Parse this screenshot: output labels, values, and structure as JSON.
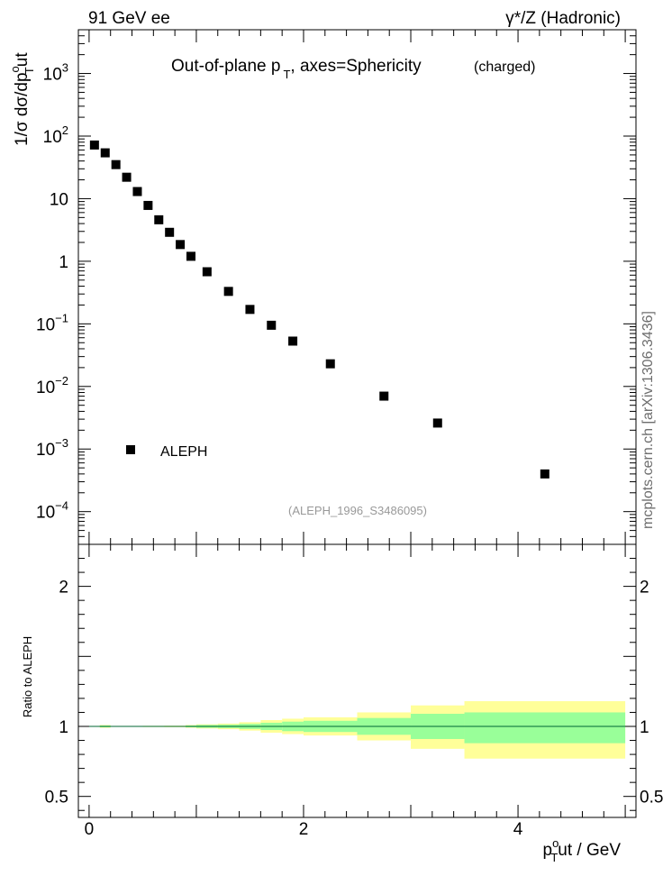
{
  "header": {
    "left": "91 GeV ee",
    "right": "γ*/Z (Hadronic)"
  },
  "side_label": "mcplots.cern.ch [arXiv:1306.3436]",
  "chart_data": [
    {
      "type": "scatter",
      "title": "Out-of-plane p",
      "title_sub": "T",
      "title_rest": ", axes=Sphericity",
      "title_note": "(charged)",
      "ylabel_prefix": "1/σ dσ/dp",
      "ylabel_sup": "o",
      "ylabel_sub": "T",
      "ylabel_suffix": "ut",
      "yscale": "log",
      "ylim": [
        3e-05,
        5000
      ],
      "xlim": [
        -0.1,
        5.1
      ],
      "yticks": [
        {
          "v": 0.0001,
          "base": "10",
          "exp": "−4"
        },
        {
          "v": 0.001,
          "base": "10",
          "exp": "−3"
        },
        {
          "v": 0.01,
          "base": "10",
          "exp": "−2"
        },
        {
          "v": 0.1,
          "base": "10",
          "exp": "−1"
        },
        {
          "v": 1,
          "base": "1",
          "exp": ""
        },
        {
          "v": 10,
          "base": "10",
          "exp": ""
        },
        {
          "v": 100,
          "base": "10",
          "exp": "2"
        },
        {
          "v": 1000,
          "base": "10",
          "exp": "3"
        }
      ],
      "legend": [
        {
          "name": "ALEPH",
          "marker": "square",
          "color": "#000000"
        }
      ],
      "legend_position": "lower-left",
      "annotation": "(ALEPH_1996_S3486095)",
      "series": [
        {
          "name": "ALEPH",
          "x": [
            0.05,
            0.15,
            0.25,
            0.35,
            0.45,
            0.55,
            0.65,
            0.75,
            0.85,
            0.95,
            1.1,
            1.3,
            1.5,
            1.7,
            1.9,
            2.25,
            2.75,
            3.25,
            4.25
          ],
          "y": [
            72,
            54,
            35,
            22,
            13,
            7.8,
            4.6,
            2.9,
            1.85,
            1.2,
            0.68,
            0.33,
            0.17,
            0.095,
            0.053,
            0.023,
            0.007,
            0.0026,
            0.0004
          ]
        }
      ]
    },
    {
      "type": "area",
      "ylabel": "Ratio to ALEPH",
      "xlabel_prefix": "p",
      "xlabel_sup": "o",
      "xlabel_sub": "T",
      "xlabel_suffix": "ut / GeV",
      "ylim": [
        0.35,
        2.3
      ],
      "xlim": [
        -0.1,
        5.1
      ],
      "yticks": [
        {
          "v": 0.5,
          "label": "0.5"
        },
        {
          "v": 1,
          "label": "1"
        },
        {
          "v": 2,
          "label": "2"
        }
      ],
      "xticks": [
        {
          "v": 0,
          "label": "0"
        },
        {
          "v": 2,
          "label": "2"
        },
        {
          "v": 4,
          "label": "4"
        }
      ],
      "reference_line": 1,
      "colors": {
        "outer_band": "#ffff99",
        "inner_band": "#99ff99",
        "line": "#006633"
      },
      "bands": [
        {
          "x0": 0.0,
          "x1": 0.1,
          "outer": [
            0.997,
            1.003
          ],
          "inner": [
            0.998,
            1.002
          ]
        },
        {
          "x0": 0.1,
          "x1": 0.2,
          "outer": [
            0.99,
            1.01
          ],
          "inner": [
            0.994,
            1.006
          ]
        },
        {
          "x0": 0.2,
          "x1": 0.3,
          "outer": [
            0.997,
            1.003
          ],
          "inner": [
            0.998,
            1.002
          ]
        },
        {
          "x0": 0.3,
          "x1": 0.4,
          "outer": [
            0.997,
            1.003
          ],
          "inner": [
            0.998,
            1.002
          ]
        },
        {
          "x0": 0.4,
          "x1": 0.5,
          "outer": [
            0.997,
            1.003
          ],
          "inner": [
            0.998,
            1.002
          ]
        },
        {
          "x0": 0.5,
          "x1": 0.6,
          "outer": [
            0.996,
            1.004
          ],
          "inner": [
            0.998,
            1.002
          ]
        },
        {
          "x0": 0.6,
          "x1": 0.7,
          "outer": [
            0.996,
            1.004
          ],
          "inner": [
            0.998,
            1.002
          ]
        },
        {
          "x0": 0.7,
          "x1": 0.8,
          "outer": [
            0.995,
            1.005
          ],
          "inner": [
            0.997,
            1.003
          ]
        },
        {
          "x0": 0.8,
          "x1": 0.9,
          "outer": [
            0.995,
            1.005
          ],
          "inner": [
            0.997,
            1.003
          ]
        },
        {
          "x0": 0.9,
          "x1": 1.0,
          "outer": [
            0.99,
            1.01
          ],
          "inner": [
            0.994,
            1.006
          ]
        },
        {
          "x0": 1.0,
          "x1": 1.2,
          "outer": [
            0.985,
            1.015
          ],
          "inner": [
            0.99,
            1.01
          ]
        },
        {
          "x0": 1.2,
          "x1": 1.4,
          "outer": [
            0.98,
            1.02
          ],
          "inner": [
            0.988,
            1.012
          ]
        },
        {
          "x0": 1.4,
          "x1": 1.6,
          "outer": [
            0.97,
            1.03
          ],
          "inner": [
            0.982,
            1.018
          ]
        },
        {
          "x0": 1.6,
          "x1": 1.8,
          "outer": [
            0.955,
            1.045
          ],
          "inner": [
            0.974,
            1.026
          ]
        },
        {
          "x0": 1.8,
          "x1": 2.0,
          "outer": [
            0.945,
            1.055
          ],
          "inner": [
            0.966,
            1.034
          ]
        },
        {
          "x0": 2.0,
          "x1": 2.5,
          "outer": [
            0.935,
            1.065
          ],
          "inner": [
            0.96,
            1.04
          ]
        },
        {
          "x0": 2.5,
          "x1": 3.0,
          "outer": [
            0.9,
            1.1
          ],
          "inner": [
            0.94,
            1.06
          ]
        },
        {
          "x0": 3.0,
          "x1": 3.5,
          "outer": [
            0.84,
            1.15
          ],
          "inner": [
            0.91,
            1.09
          ]
        },
        {
          "x0": 3.5,
          "x1": 5.0,
          "outer": [
            0.77,
            1.18
          ],
          "inner": [
            0.88,
            1.1
          ]
        }
      ]
    }
  ]
}
